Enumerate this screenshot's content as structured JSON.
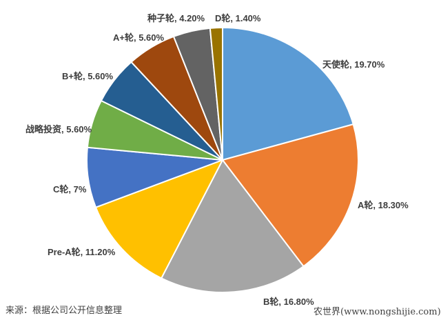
{
  "chart_data": {
    "type": "pie",
    "title": "",
    "legend": "none",
    "labels_position": "outside-end",
    "start_angle_deg": 0,
    "direction": "clockwise",
    "slices": [
      {
        "label": "天使轮",
        "pct": "19.70%",
        "value": 19.7,
        "color": "#5B9BD5",
        "display": "天使轮, 19.70%"
      },
      {
        "label": "A轮",
        "pct": "18.30%",
        "value": 18.3,
        "color": "#ED7D31",
        "display": "A轮, 18.30%"
      },
      {
        "label": "B轮",
        "pct": "16.80%",
        "value": 16.8,
        "color": "#A5A5A5",
        "display": "B轮, 16.80%"
      },
      {
        "label": "Pre-A轮",
        "pct": "11.20%",
        "value": 11.2,
        "color": "#FFC000",
        "display": "Pre-A轮, 11.20%"
      },
      {
        "label": "C轮",
        "pct": "7%",
        "value": 7.0,
        "color": "#4472C4",
        "display": "C轮, 7%"
      },
      {
        "label": "战略投资",
        "pct": "5.60%",
        "value": 5.6,
        "color": "#70AD47",
        "display": "战略投资, 5.60%"
      },
      {
        "label": "B+轮",
        "pct": "5.60%",
        "value": 5.6,
        "color": "#255E91",
        "display": "B+轮, 5.60%"
      },
      {
        "label": "A+轮",
        "pct": "5.60%",
        "value": 5.6,
        "color": "#9E480E",
        "display": "A+轮, 5.60%"
      },
      {
        "label": "种子轮",
        "pct": "4.20%",
        "value": 4.2,
        "color": "#636363",
        "display": "种子轮, 4.20%"
      },
      {
        "label": "D轮",
        "pct": "1.40%",
        "value": 1.4,
        "color": "#997300",
        "display": "D轮, 1.40%"
      }
    ],
    "slice_border_color": "#FFFFFF"
  },
  "footer": {
    "source": "来源：根据公司公开信息整理",
    "watermark": "农世界(www.nongshijie.com)"
  }
}
